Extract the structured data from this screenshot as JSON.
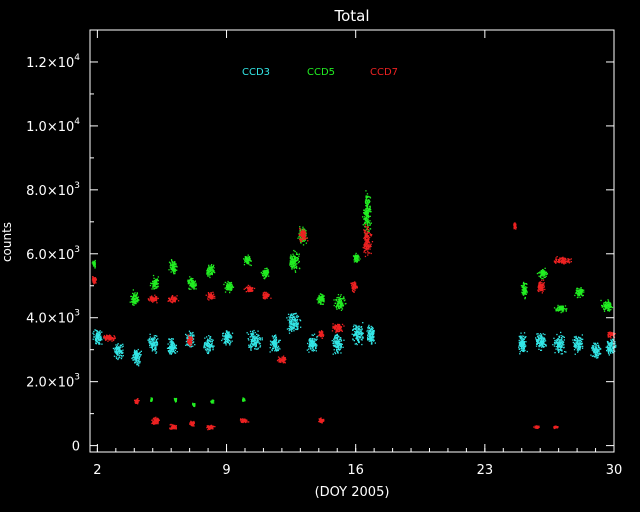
{
  "chart_data": {
    "type": "scatter",
    "title": "Total",
    "xlabel": "(DOY 2005)",
    "ylabel": "counts",
    "xlim": [
      1.6,
      30
    ],
    "ylim": [
      -200,
      13000
    ],
    "xticks": [
      {
        "value": 2,
        "label": "2"
      },
      {
        "value": 9,
        "label": "9"
      },
      {
        "value": 16,
        "label": "16"
      },
      {
        "value": 23,
        "label": "23"
      },
      {
        "value": 30,
        "label": "30"
      }
    ],
    "yticks": [
      {
        "value": 0,
        "mant": "0",
        "exp": ""
      },
      {
        "value": 2000,
        "mant": "2.0×10",
        "exp": "3"
      },
      {
        "value": 4000,
        "mant": "4.0×10",
        "exp": "3"
      },
      {
        "value": 6000,
        "mant": "6.0×10",
        "exp": "3"
      },
      {
        "value": 8000,
        "mant": "8.0×10",
        "exp": "3"
      },
      {
        "value": 10000,
        "mant": "1.0×10",
        "exp": "4"
      },
      {
        "value": 12000,
        "mant": "1.2×10",
        "exp": "4"
      }
    ],
    "grid": false,
    "legend_position": "top-center",
    "series": [
      {
        "name": "CCD3",
        "color": "#33e6e6",
        "clusters": [
          [
            2.0,
            3400,
            0.35,
            300
          ],
          [
            3.1,
            3000,
            0.35,
            300
          ],
          [
            4.1,
            2800,
            0.3,
            350
          ],
          [
            5.0,
            3200,
            0.35,
            350
          ],
          [
            6.0,
            3100,
            0.35,
            350
          ],
          [
            7.0,
            3300,
            0.3,
            350
          ],
          [
            8.0,
            3200,
            0.35,
            350
          ],
          [
            9.0,
            3400,
            0.35,
            350
          ],
          [
            10.5,
            3300,
            0.5,
            400
          ],
          [
            11.6,
            3200,
            0.35,
            350
          ],
          [
            12.6,
            3900,
            0.45,
            450
          ],
          [
            13.6,
            3200,
            0.35,
            350
          ],
          [
            15.0,
            3200,
            0.4,
            400
          ],
          [
            16.1,
            3500,
            0.4,
            450
          ],
          [
            16.8,
            3500,
            0.3,
            450
          ],
          [
            25.0,
            3200,
            0.3,
            400
          ],
          [
            26.0,
            3300,
            0.4,
            400
          ],
          [
            27.0,
            3200,
            0.4,
            400
          ],
          [
            28.0,
            3200,
            0.35,
            350
          ],
          [
            29.0,
            3000,
            0.35,
            350
          ],
          [
            29.8,
            3100,
            0.3,
            350
          ]
        ]
      },
      {
        "name": "CCD5",
        "color": "#22ee22",
        "clusters": [
          [
            1.8,
            5700,
            0.15,
            150
          ],
          [
            4.0,
            4600,
            0.3,
            300
          ],
          [
            5.1,
            5100,
            0.3,
            250
          ],
          [
            6.1,
            5600,
            0.3,
            300
          ],
          [
            7.1,
            5100,
            0.3,
            250
          ],
          [
            8.1,
            5500,
            0.3,
            250
          ],
          [
            9.1,
            5000,
            0.3,
            250
          ],
          [
            10.1,
            5800,
            0.3,
            200
          ],
          [
            11.1,
            5400,
            0.3,
            200
          ],
          [
            12.6,
            5800,
            0.4,
            400
          ],
          [
            13.1,
            6600,
            0.3,
            350
          ],
          [
            14.1,
            4600,
            0.3,
            250
          ],
          [
            15.1,
            4500,
            0.4,
            300
          ],
          [
            16.0,
            5900,
            0.25,
            200
          ],
          [
            16.6,
            7300,
            0.3,
            800
          ],
          [
            25.1,
            4900,
            0.2,
            300
          ],
          [
            26.1,
            5400,
            0.3,
            200
          ],
          [
            27.1,
            4300,
            0.4,
            150
          ],
          [
            28.1,
            4800,
            0.3,
            200
          ],
          [
            29.6,
            4400,
            0.4,
            250
          ],
          [
            4.9,
            1450,
            0.1,
            80
          ],
          [
            6.2,
            1450,
            0.1,
            80
          ],
          [
            7.2,
            1300,
            0.1,
            80
          ],
          [
            8.2,
            1400,
            0.1,
            80
          ],
          [
            9.9,
            1450,
            0.1,
            80
          ]
        ]
      },
      {
        "name": "CCD7",
        "color": "#ee2222",
        "clusters": [
          [
            1.8,
            5200,
            0.15,
            150
          ],
          [
            2.6,
            3400,
            0.5,
            150
          ],
          [
            5.0,
            4600,
            0.35,
            150
          ],
          [
            6.1,
            4600,
            0.35,
            150
          ],
          [
            7.0,
            3300,
            0.2,
            200
          ],
          [
            8.1,
            4700,
            0.3,
            150
          ],
          [
            10.2,
            4900,
            0.3,
            150
          ],
          [
            11.1,
            4700,
            0.3,
            150
          ],
          [
            12.0,
            2700,
            0.3,
            150
          ],
          [
            13.1,
            6600,
            0.3,
            300
          ],
          [
            14.1,
            3500,
            0.2,
            150
          ],
          [
            15.0,
            3700,
            0.4,
            200
          ],
          [
            15.9,
            5000,
            0.25,
            200
          ],
          [
            16.6,
            6400,
            0.3,
            600
          ],
          [
            24.6,
            6900,
            0.1,
            150
          ],
          [
            26.0,
            5000,
            0.3,
            250
          ],
          [
            27.2,
            5800,
            0.6,
            150
          ],
          [
            29.8,
            3500,
            0.3,
            150
          ],
          [
            4.1,
            1400,
            0.15,
            100
          ],
          [
            5.1,
            800,
            0.3,
            150
          ],
          [
            6.1,
            600,
            0.3,
            100
          ],
          [
            7.1,
            700,
            0.2,
            100
          ],
          [
            8.1,
            600,
            0.3,
            100
          ],
          [
            9.9,
            800,
            0.3,
            100
          ],
          [
            14.1,
            800,
            0.2,
            100
          ],
          [
            25.8,
            600,
            0.2,
            60
          ],
          [
            26.8,
            600,
            0.2,
            60
          ]
        ]
      }
    ]
  },
  "colors": {
    "background": "#000000",
    "axes": "#ffffff"
  }
}
